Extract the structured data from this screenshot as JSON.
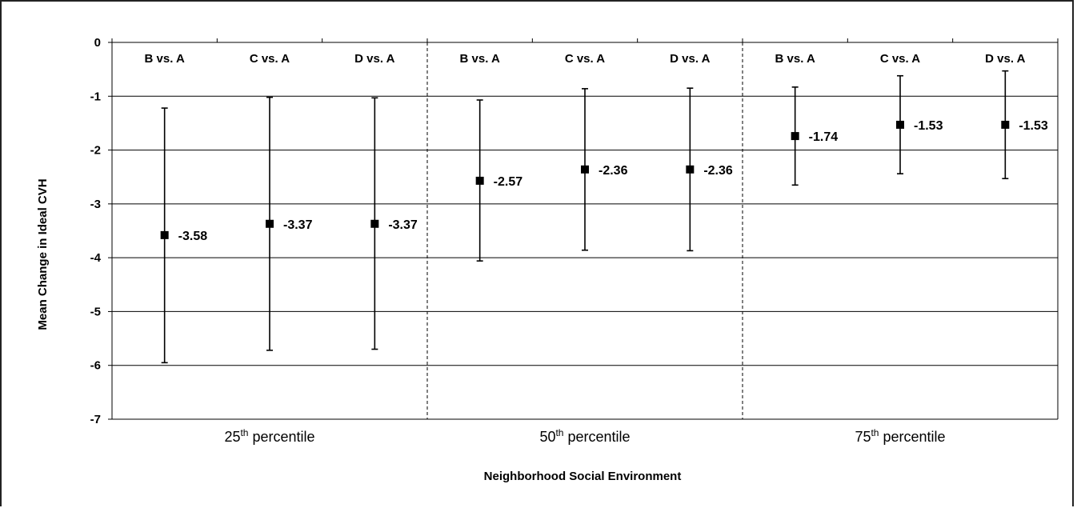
{
  "chart_data": {
    "type": "errorbar",
    "title": "",
    "xlabel": "Neighborhood Social Environment",
    "ylabel": "Mean Change in Ideal CVH",
    "ylim": [
      -7,
      0
    ],
    "yticks": [
      "0",
      "-1",
      "-2",
      "-3",
      "-4",
      "-5",
      "-6",
      "-7"
    ],
    "grid": "horizontal",
    "groups": [
      {
        "name": "25th percentile",
        "name_base": "25",
        "name_sup": "th",
        "name_rest": " percentile",
        "points": [
          {
            "label": "B vs. A",
            "value": -3.58,
            "value_label": "-3.58",
            "ci_low": -5.95,
            "ci_high": -1.22
          },
          {
            "label": "C vs. A",
            "value": -3.37,
            "value_label": "-3.37",
            "ci_low": -5.72,
            "ci_high": -1.02
          },
          {
            "label": "D vs. A",
            "value": -3.37,
            "value_label": "-3.37",
            "ci_low": -5.7,
            "ci_high": -1.03
          }
        ]
      },
      {
        "name": "50th percentile",
        "name_base": "50",
        "name_sup": "th",
        "name_rest": " percentile",
        "points": [
          {
            "label": "B vs. A",
            "value": -2.57,
            "value_label": "-2.57",
            "ci_low": -4.06,
            "ci_high": -1.07
          },
          {
            "label": "C vs. A",
            "value": -2.36,
            "value_label": "-2.36",
            "ci_low": -3.86,
            "ci_high": -0.86
          },
          {
            "label": "D vs. A",
            "value": -2.36,
            "value_label": "-2.36",
            "ci_low": -3.87,
            "ci_high": -0.85
          }
        ]
      },
      {
        "name": "75th percentile",
        "name_base": "75",
        "name_sup": "th",
        "name_rest": " percentile",
        "points": [
          {
            "label": "B vs. A",
            "value": -1.74,
            "value_label": "-1.74",
            "ci_low": -2.65,
            "ci_high": -0.83
          },
          {
            "label": "C vs. A",
            "value": -1.53,
            "value_label": "-1.53",
            "ci_low": -2.44,
            "ci_high": -0.62
          },
          {
            "label": "D vs. A",
            "value": -1.53,
            "value_label": "-1.53",
            "ci_low": -2.53,
            "ci_high": -0.53
          }
        ]
      }
    ],
    "colors": {
      "marker": "#000000",
      "grid": "#000000",
      "separator": "#000000"
    }
  }
}
